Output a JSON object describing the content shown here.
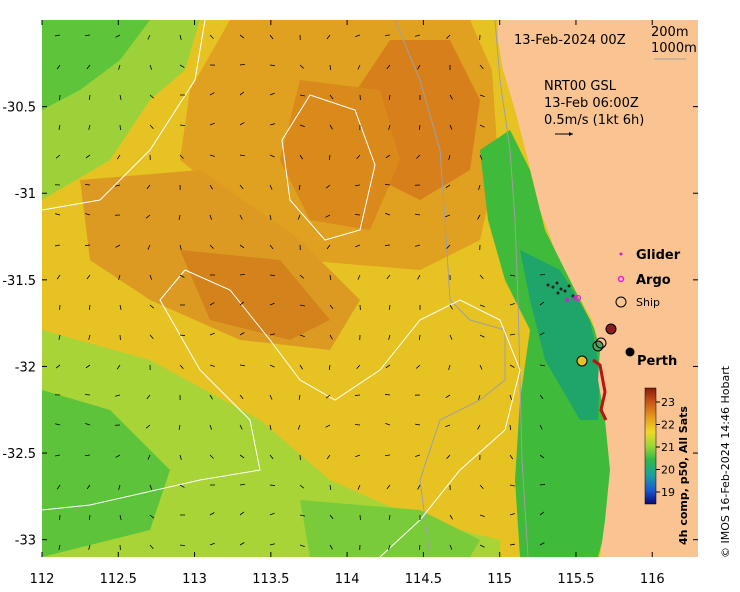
{
  "map": {
    "date_label": "13-Feb-2024 00Z",
    "isobath_shallow_label": "200m",
    "isobath_deep_label": "1000m",
    "current_title": "NRT00 GSL",
    "current_time": "13-Feb 06:00Z",
    "current_scale": "0.5m/s (1kt 6h)",
    "x_ticks": [
      "112",
      "112.5",
      "113",
      "113.5",
      "114",
      "114.5",
      "115",
      "115.5",
      "116"
    ],
    "y_ticks": [
      "-30.5",
      "-31",
      "-31.5",
      "-32",
      "-32.5",
      "-33"
    ],
    "lon_range": [
      112,
      116.3
    ],
    "lat_range": [
      -30,
      -33.1
    ]
  },
  "legend": {
    "glider": "Glider",
    "argo": "Argo",
    "ship": "Ship",
    "city": "Perth"
  },
  "colorbar": {
    "ticks": [
      "23",
      "22",
      "21",
      "20",
      "19"
    ],
    "title": "4h comp, p50, All Sats"
  },
  "credit": "© IMOS 16-Feb-2024 14:46 Hobart",
  "colors": {
    "land": "#f9c492",
    "warm": "#d9861a",
    "mid": "#e7c21f",
    "cool": "#6fca3a",
    "cold": "#1a9f6d",
    "glider": "#d020d0",
    "argo": "#e020e0"
  }
}
